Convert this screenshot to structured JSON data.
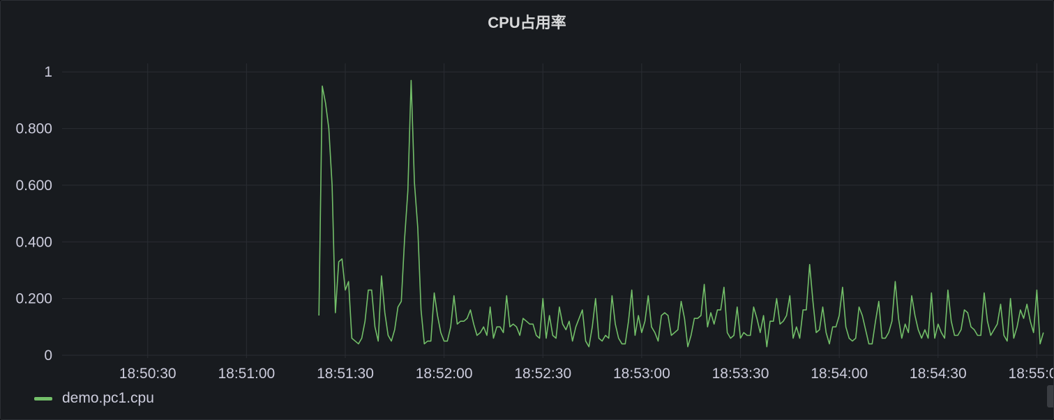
{
  "panel": {
    "title": "CPU占用率"
  },
  "colors": {
    "background": "#181b1f",
    "grid": "#2a2d33",
    "series": "#73bf69",
    "text": "#ccccdc"
  },
  "legend": {
    "placement": "bottom-left",
    "items": [
      {
        "label": "demo.pc1.cpu",
        "color": "#73bf69"
      }
    ]
  },
  "chart_data": {
    "type": "line",
    "title": "CPU占用率",
    "xlabel": "",
    "ylabel": "",
    "grid": true,
    "legend": "bottom-left",
    "ylim": [
      0,
      1.03
    ],
    "y_ticks": [
      {
        "value": 0,
        "label": "0"
      },
      {
        "value": 0.2,
        "label": "0.200"
      },
      {
        "value": 0.4,
        "label": "0.400"
      },
      {
        "value": 0.6,
        "label": "0.600"
      },
      {
        "value": 0.8,
        "label": "0.800"
      },
      {
        "value": 1,
        "label": "1"
      }
    ],
    "xlim": [
      "18:50:04",
      "18:55:05"
    ],
    "x_ticks": [
      "18:50:30",
      "18:51:00",
      "18:51:30",
      "18:52:00",
      "18:52:30",
      "18:53:00",
      "18:53:30",
      "18:54:00",
      "18:54:30",
      "18:55:00"
    ],
    "series": [
      {
        "name": "demo.pc1.cpu",
        "color": "#73bf69",
        "start": "18:51:22",
        "interval_seconds": 1,
        "values": [
          0.14,
          0.95,
          0.89,
          0.8,
          0.6,
          0.15,
          0.33,
          0.34,
          0.23,
          0.26,
          0.06,
          0.05,
          0.04,
          0.06,
          0.12,
          0.23,
          0.23,
          0.1,
          0.05,
          0.28,
          0.15,
          0.07,
          0.05,
          0.09,
          0.17,
          0.19,
          0.41,
          0.58,
          0.97,
          0.61,
          0.45,
          0.16,
          0.04,
          0.05,
          0.05,
          0.22,
          0.14,
          0.08,
          0.05,
          0.05,
          0.1,
          0.21,
          0.11,
          0.12,
          0.12,
          0.13,
          0.16,
          0.11,
          0.07,
          0.08,
          0.1,
          0.07,
          0.17,
          0.06,
          0.1,
          0.1,
          0.08,
          0.21,
          0.1,
          0.11,
          0.1,
          0.07,
          0.13,
          0.12,
          0.11,
          0.11,
          0.07,
          0.06,
          0.2,
          0.06,
          0.14,
          0.07,
          0.06,
          0.17,
          0.11,
          0.09,
          0.12,
          0.05,
          0.1,
          0.13,
          0.16,
          0.05,
          0.03,
          0.1,
          0.2,
          0.06,
          0.05,
          0.07,
          0.06,
          0.21,
          0.11,
          0.06,
          0.04,
          0.04,
          0.12,
          0.23,
          0.07,
          0.14,
          0.08,
          0.12,
          0.21,
          0.1,
          0.08,
          0.05,
          0.14,
          0.15,
          0.14,
          0.07,
          0.08,
          0.09,
          0.19,
          0.13,
          0.03,
          0.07,
          0.13,
          0.13,
          0.14,
          0.25,
          0.1,
          0.15,
          0.11,
          0.16,
          0.16,
          0.24,
          0.08,
          0.06,
          0.07,
          0.17,
          0.06,
          0.08,
          0.07,
          0.07,
          0.17,
          0.13,
          0.08,
          0.14,
          0.03,
          0.12,
          0.12,
          0.2,
          0.11,
          0.12,
          0.14,
          0.21,
          0.06,
          0.1,
          0.06,
          0.16,
          0.16,
          0.32,
          0.19,
          0.08,
          0.09,
          0.17,
          0.08,
          0.04,
          0.1,
          0.1,
          0.14,
          0.24,
          0.1,
          0.06,
          0.05,
          0.06,
          0.17,
          0.14,
          0.09,
          0.04,
          0.04,
          0.12,
          0.19,
          0.06,
          0.06,
          0.08,
          0.12,
          0.26,
          0.13,
          0.06,
          0.11,
          0.08,
          0.21,
          0.14,
          0.09,
          0.06,
          0.09,
          0.06,
          0.22,
          0.06,
          0.11,
          0.08,
          0.06,
          0.23,
          0.12,
          0.07,
          0.07,
          0.09,
          0.16,
          0.15,
          0.1,
          0.09,
          0.07,
          0.07,
          0.22,
          0.12,
          0.07,
          0.09,
          0.11,
          0.18,
          0.07,
          0.05,
          0.2,
          0.06,
          0.1,
          0.16,
          0.13,
          0.18,
          0.12,
          0.08,
          0.23,
          0.04,
          0.08
        ]
      }
    ]
  }
}
